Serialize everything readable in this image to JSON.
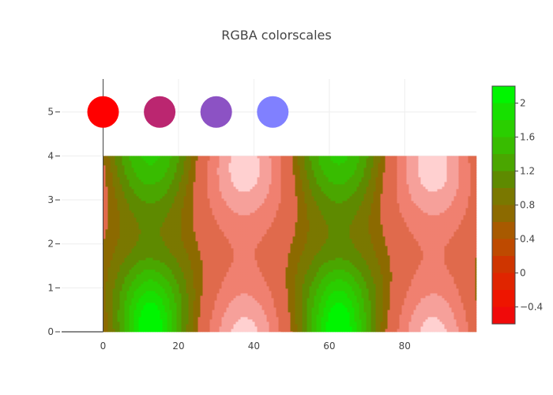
{
  "chart_data": {
    "type": "contour",
    "title": "RGBA colorscales",
    "xlabel": "",
    "ylabel": "",
    "xlim": [
      -11,
      99
    ],
    "ylim": [
      0,
      5.75
    ],
    "x_ticks": [
      0,
      20,
      40,
      60,
      80
    ],
    "y_ticks": [
      0,
      1,
      2,
      3,
      4,
      5
    ],
    "contour_region": {
      "x": [
        0,
        99
      ],
      "y": [
        0,
        4
      ]
    },
    "contour_period": 50,
    "colorbar": {
      "tick_values": [
        -0.4,
        0,
        0.4,
        0.8,
        1.2,
        1.6,
        2
      ],
      "tick_labels": [
        "−0.4",
        "0",
        "0.4",
        "0.8",
        "1.2",
        "1.6",
        "2"
      ],
      "range": [
        -0.6,
        2.2
      ],
      "bands": [
        {
          "from": -0.6,
          "to": -0.4,
          "color": "#f00a0a"
        },
        {
          "from": -0.4,
          "to": -0.2,
          "color": "#ee1500"
        },
        {
          "from": -0.2,
          "to": 0.0,
          "color": "#e02500"
        },
        {
          "from": 0.0,
          "to": 0.2,
          "color": "#cf3500"
        },
        {
          "from": 0.2,
          "to": 0.4,
          "color": "#be4a00"
        },
        {
          "from": 0.4,
          "to": 0.6,
          "color": "#a85a00"
        },
        {
          "from": 0.6,
          "to": 0.8,
          "color": "#8c6a00"
        },
        {
          "from": 0.8,
          "to": 1.0,
          "color": "#7a7800"
        },
        {
          "from": 1.0,
          "to": 1.2,
          "color": "#5e8a00"
        },
        {
          "from": 1.2,
          "to": 1.4,
          "color": "#4aa600"
        },
        {
          "from": 1.4,
          "to": 1.6,
          "color": "#38bc00"
        },
        {
          "from": 1.6,
          "to": 1.8,
          "color": "#2ace00"
        },
        {
          "from": 1.8,
          "to": 2.0,
          "color": "#17e000"
        },
        {
          "from": 2.0,
          "to": 2.2,
          "color": "#00f500"
        }
      ]
    },
    "pink_levels": [
      {
        "max": 0.6,
        "color": "#e06a4c"
      },
      {
        "max": 0.2,
        "color": "#f08070"
      },
      {
        "max": -0.1,
        "color": "#f6a09a"
      },
      {
        "max": -0.35,
        "color": "#ffd0d0"
      }
    ],
    "scatter": [
      {
        "x": 0,
        "y": 5,
        "color": "#ff0000"
      },
      {
        "x": 15,
        "y": 5,
        "color": "#bb2670"
      },
      {
        "x": 30,
        "y": 5,
        "color": "#8c52c4"
      },
      {
        "x": 45,
        "y": 5,
        "color": "#8080ff"
      }
    ]
  }
}
